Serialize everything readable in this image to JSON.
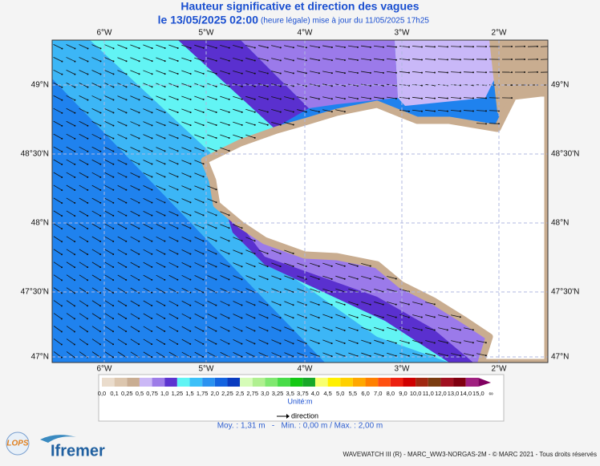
{
  "header": {
    "title": "Hauteur significative et direction des vagues",
    "date": "le 13/05/2025 02:00",
    "update": "(heure légale) mise à jour du 11/05/2025 17h25"
  },
  "map": {
    "lon_labels": [
      "6°W",
      "5°W",
      "4°W",
      "3°W",
      "2°W"
    ],
    "lat_labels": [
      "49°N",
      "48°30'N",
      "48°N",
      "47°30'N",
      "47°N"
    ]
  },
  "legend": {
    "labels": [
      "0,0",
      "0,1",
      "0,25",
      "0,5",
      "0,75",
      "1,0",
      "1,25",
      "1,5",
      "1,75",
      "2,0",
      "2,25",
      "2,5",
      "2,75",
      "3,0",
      "3,25",
      "3,5",
      "3,75",
      "4,0",
      "4,5",
      "5,0",
      "5,5",
      "6,0",
      "7,0",
      "8,0",
      "9,0",
      "10,0",
      "11,0",
      "12,0",
      "13,0",
      "14,0",
      "15,0",
      "∞"
    ],
    "colors": [
      "#eadccc",
      "#dcc6ae",
      "#c9ad92",
      "#cbb8f6",
      "#9d7ce8",
      "#5c34d0",
      "#60f4f4",
      "#3cc0f8",
      "#2a92f0",
      "#1464e0",
      "#0a3cc0",
      "#d6fcb8",
      "#b0f090",
      "#80e870",
      "#48dc48",
      "#14c814",
      "#18a828",
      "#f8ff70",
      "#fff000",
      "#ffd000",
      "#ffa800",
      "#ff8000",
      "#ff5010",
      "#ec2010",
      "#d00000",
      "#a02810",
      "#7a3c10",
      "#a01020",
      "#800010",
      "#a02080",
      "#800060"
    ],
    "unit": "Unité:m",
    "direction": "direction"
  },
  "stats": "Moy. : 1,31 m   -   Min. : 0,00 m / Max. : 2,00 m",
  "logos": {
    "lops": "LOPS",
    "ifremer": "Ifremer"
  },
  "footer": "WAVEWATCH III (R) - MARC_WW3-NORGAS-2M - © MARC 2021 - Tous droits réservés"
}
